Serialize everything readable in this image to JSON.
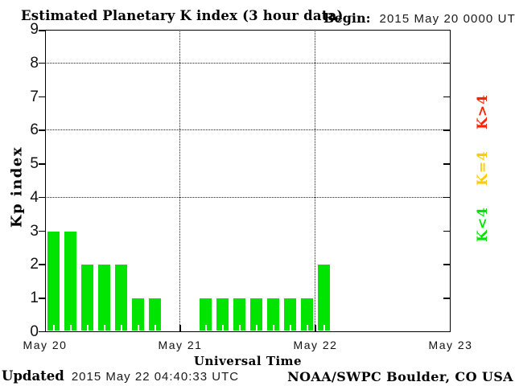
{
  "chart_data": {
    "type": "bar",
    "title": "Estimated Planetary K index (3 hour data)",
    "begin_label": "Begin:",
    "begin_value": "2015 May 20 0000 UTC",
    "xlabel": "Universal Time",
    "ylabel": "Kp index",
    "ylim": [
      0,
      9
    ],
    "y_ticks": [
      0,
      1,
      2,
      3,
      4,
      5,
      6,
      7,
      8,
      9
    ],
    "gridlines_y": [
      4,
      6,
      8
    ],
    "grid_style": "dotted",
    "hours_per_bar": 3,
    "x_day_labels": [
      "May 20",
      "May 21",
      "May 22",
      "May 23"
    ],
    "days": [
      {
        "date": "May 20",
        "values": [
          3,
          3,
          2,
          2,
          2,
          1,
          1,
          0
        ]
      },
      {
        "date": "May 21",
        "values": [
          0,
          1,
          1,
          1,
          1,
          1,
          1,
          1
        ]
      },
      {
        "date": "May 22",
        "values": [
          2,
          null,
          null,
          null,
          null,
          null,
          null,
          null
        ]
      }
    ],
    "bar_color_rule": {
      "lt4": "#00e400",
      "eq4": "#ffcc00",
      "gt4": "#ff2200"
    },
    "legend": [
      {
        "label": "K>4",
        "color": "#ff2200"
      },
      {
        "label": "K=4",
        "color": "#ffcc00"
      },
      {
        "label": "K<4",
        "color": "#00e400"
      }
    ],
    "footer": {
      "updated_label": "Updated",
      "updated_value": "2015 May 22 04:40:33 UTC",
      "credit": "NOAA/SWPC Boulder, CO USA"
    }
  }
}
